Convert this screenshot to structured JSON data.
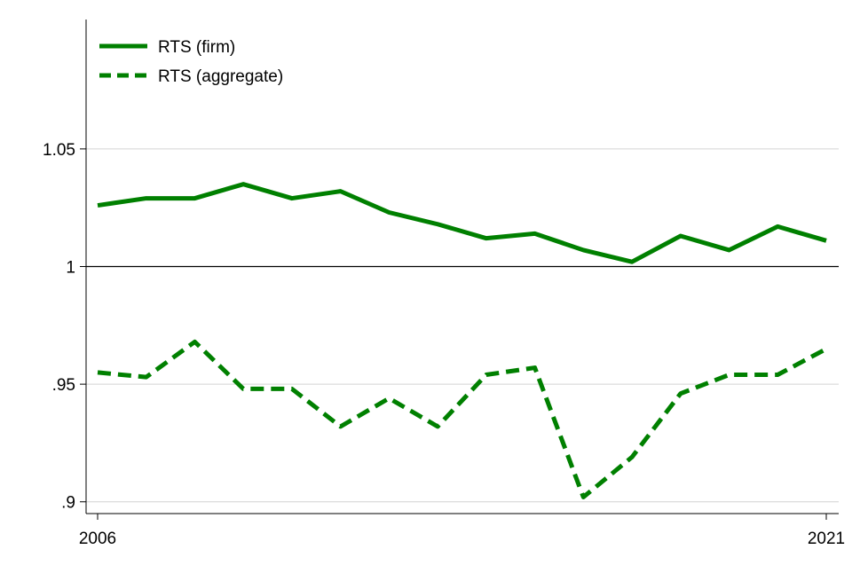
{
  "chart_data": {
    "type": "line",
    "x": [
      2006,
      2007,
      2008,
      2009,
      2010,
      2011,
      2012,
      2013,
      2014,
      2015,
      2016,
      2017,
      2018,
      2019,
      2020,
      2021
    ],
    "x_tick_labels": [
      "2006",
      "2021"
    ],
    "y_ticks": [
      0.9,
      0.95,
      1,
      1.05
    ],
    "y_tick_labels": [
      ".9",
      ".95",
      "1",
      "1.05"
    ],
    "ylim": [
      0.895,
      1.105
    ],
    "xlim": [
      2006,
      2021
    ],
    "reference_line_y": 1,
    "grid": true,
    "legend_position": "top-left",
    "series": [
      {
        "name": "RTS (firm)",
        "style": "solid",
        "color": "#008000",
        "values": [
          1.026,
          1.029,
          1.029,
          1.035,
          1.029,
          1.032,
          1.023,
          1.018,
          1.012,
          1.014,
          1.007,
          1.002,
          1.013,
          1.007,
          1.017,
          1.011
        ]
      },
      {
        "name": "RTS (aggregate)",
        "style": "dashed",
        "color": "#008000",
        "values": [
          0.955,
          0.953,
          0.968,
          0.948,
          0.948,
          0.932,
          0.944,
          0.932,
          0.954,
          0.957,
          0.902,
          0.919,
          0.946,
          0.954,
          0.954,
          0.965
        ]
      }
    ]
  }
}
